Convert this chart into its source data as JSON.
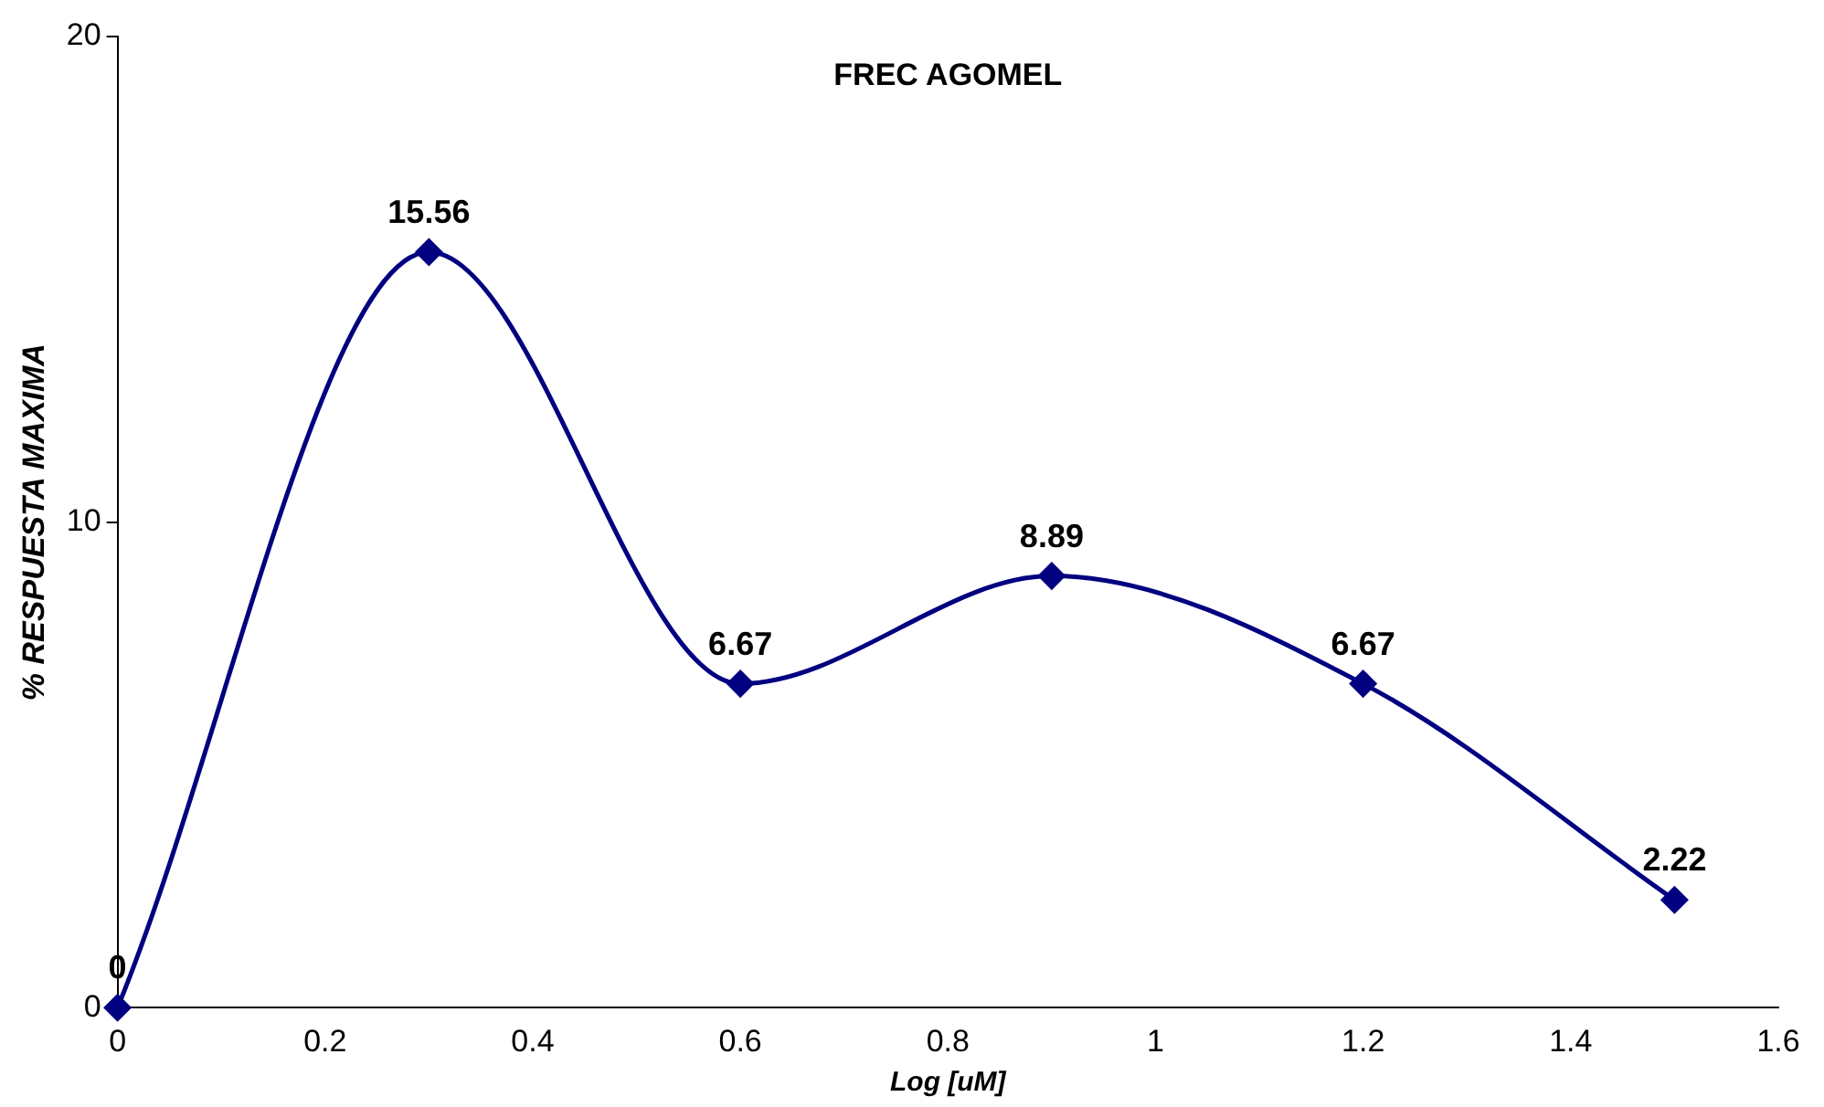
{
  "chart_data": {
    "type": "line",
    "title": "FREC AGOMEL",
    "xlabel": "Log [uM]",
    "ylabel": "% RESPUESTA MAXIMA",
    "x": [
      0,
      0.3,
      0.6,
      0.9,
      1.2,
      1.5
    ],
    "series": [
      {
        "color": "#000080",
        "values": [
          0,
          15.56,
          6.67,
          8.89,
          6.67,
          2.22
        ]
      }
    ],
    "xlim": [
      0,
      1.6
    ],
    "xticks": [
      0,
      0.2,
      0.4,
      0.6,
      0.8,
      1,
      1.2,
      1.4,
      1.6
    ],
    "ylim": [
      0,
      20
    ],
    "yticks": [
      0,
      10,
      20
    ],
    "grid": false,
    "legend": false,
    "marker": "diamond",
    "line_style": "solid",
    "data_labels": true
  }
}
